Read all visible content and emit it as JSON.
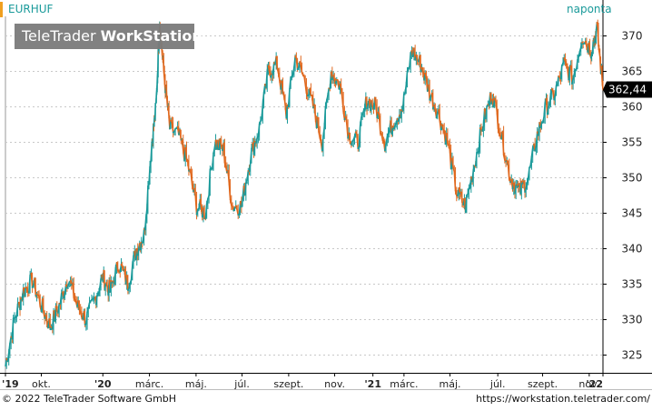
{
  "header": {
    "symbol": "EURHUF",
    "interval": "naponta",
    "watermark_brand": "TeleTrader",
    "watermark_product": "WorkStation"
  },
  "footer": {
    "copyright": "© 2022 TeleTrader Software GmbH",
    "website": "https://workstation.teletrader.com/"
  },
  "colors": {
    "up": "#1a9a9a",
    "down": "#e0681e",
    "grid": "#c8c8c8",
    "axis": "#000000",
    "last_price_bg": "#000000",
    "last_price_fg": "#ffffff",
    "accent": "#f0a020"
  },
  "chart_data": {
    "type": "line",
    "title": "EURHUF",
    "ylim": [
      322.5,
      372.5
    ],
    "y_ticks": [
      325,
      330,
      335,
      340,
      345,
      350,
      355,
      360,
      365,
      370
    ],
    "y_tick_labels": [
      "325",
      "330",
      "335",
      "340",
      "345",
      "350",
      "355",
      "360",
      "365",
      "370"
    ],
    "x_ticks": [
      {
        "label": "'19",
        "bold": true
      },
      {
        "label": "okt.",
        "bold": false
      },
      {
        "label": "'20",
        "bold": true
      },
      {
        "label": "márc.",
        "bold": false
      },
      {
        "label": "máj.",
        "bold": false
      },
      {
        "label": "júl.",
        "bold": false
      },
      {
        "label": "szept.",
        "bold": false
      },
      {
        "label": "nov.",
        "bold": false
      },
      {
        "label": "'21",
        "bold": true
      },
      {
        "label": "márc.",
        "bold": false
      },
      {
        "label": "máj.",
        "bold": false
      },
      {
        "label": "júl.",
        "bold": false
      },
      {
        "label": "szept.",
        "bold": false
      },
      {
        "label": "nov.",
        "bold": false
      },
      {
        "label": "'22",
        "bold": true
      }
    ],
    "x_tick_positions": [
      0.0,
      0.06,
      0.163,
      0.241,
      0.319,
      0.396,
      0.474,
      0.551,
      0.615,
      0.667,
      0.744,
      0.824,
      0.899,
      0.977,
      1.0
    ],
    "last_price": 362.44,
    "last_price_label": "362,44",
    "grid": true,
    "series": [
      {
        "x": [
          0.0,
          0.015,
          0.03,
          0.045,
          0.06,
          0.075,
          0.09,
          0.105,
          0.12,
          0.135,
          0.15,
          0.163,
          0.175,
          0.19,
          0.205,
          0.22,
          0.232,
          0.245,
          0.252,
          0.258,
          0.265,
          0.275,
          0.29,
          0.305,
          0.32,
          0.335,
          0.35,
          0.365,
          0.38,
          0.395,
          0.41,
          0.425,
          0.44,
          0.455,
          0.47,
          0.485,
          0.5,
          0.515,
          0.53,
          0.545,
          0.56,
          0.575,
          0.59,
          0.605,
          0.62,
          0.635,
          0.65,
          0.665,
          0.68,
          0.695,
          0.71,
          0.725,
          0.74,
          0.755,
          0.77,
          0.785,
          0.8,
          0.815,
          0.83,
          0.845,
          0.86,
          0.875,
          0.89,
          0.905,
          0.92,
          0.935,
          0.95,
          0.965,
          0.98,
          0.99,
          1.0
        ],
        "values": [
          323.5,
          330,
          334,
          335.5,
          332,
          329,
          332,
          336,
          332,
          330,
          333,
          336,
          334,
          338,
          335,
          340,
          342,
          355,
          360,
          372,
          365,
          357,
          356,
          352,
          346,
          345,
          355,
          354,
          346,
          346,
          353,
          357,
          365,
          366,
          359,
          367,
          364,
          360,
          355,
          365,
          363,
          356,
          355,
          361,
          360,
          355,
          358,
          360,
          368,
          366,
          362,
          359,
          355,
          348,
          346,
          352,
          358,
          362,
          356,
          350,
          348,
          350,
          356,
          360,
          362,
          366,
          364,
          370,
          368,
          371,
          362.44
        ]
      }
    ]
  }
}
